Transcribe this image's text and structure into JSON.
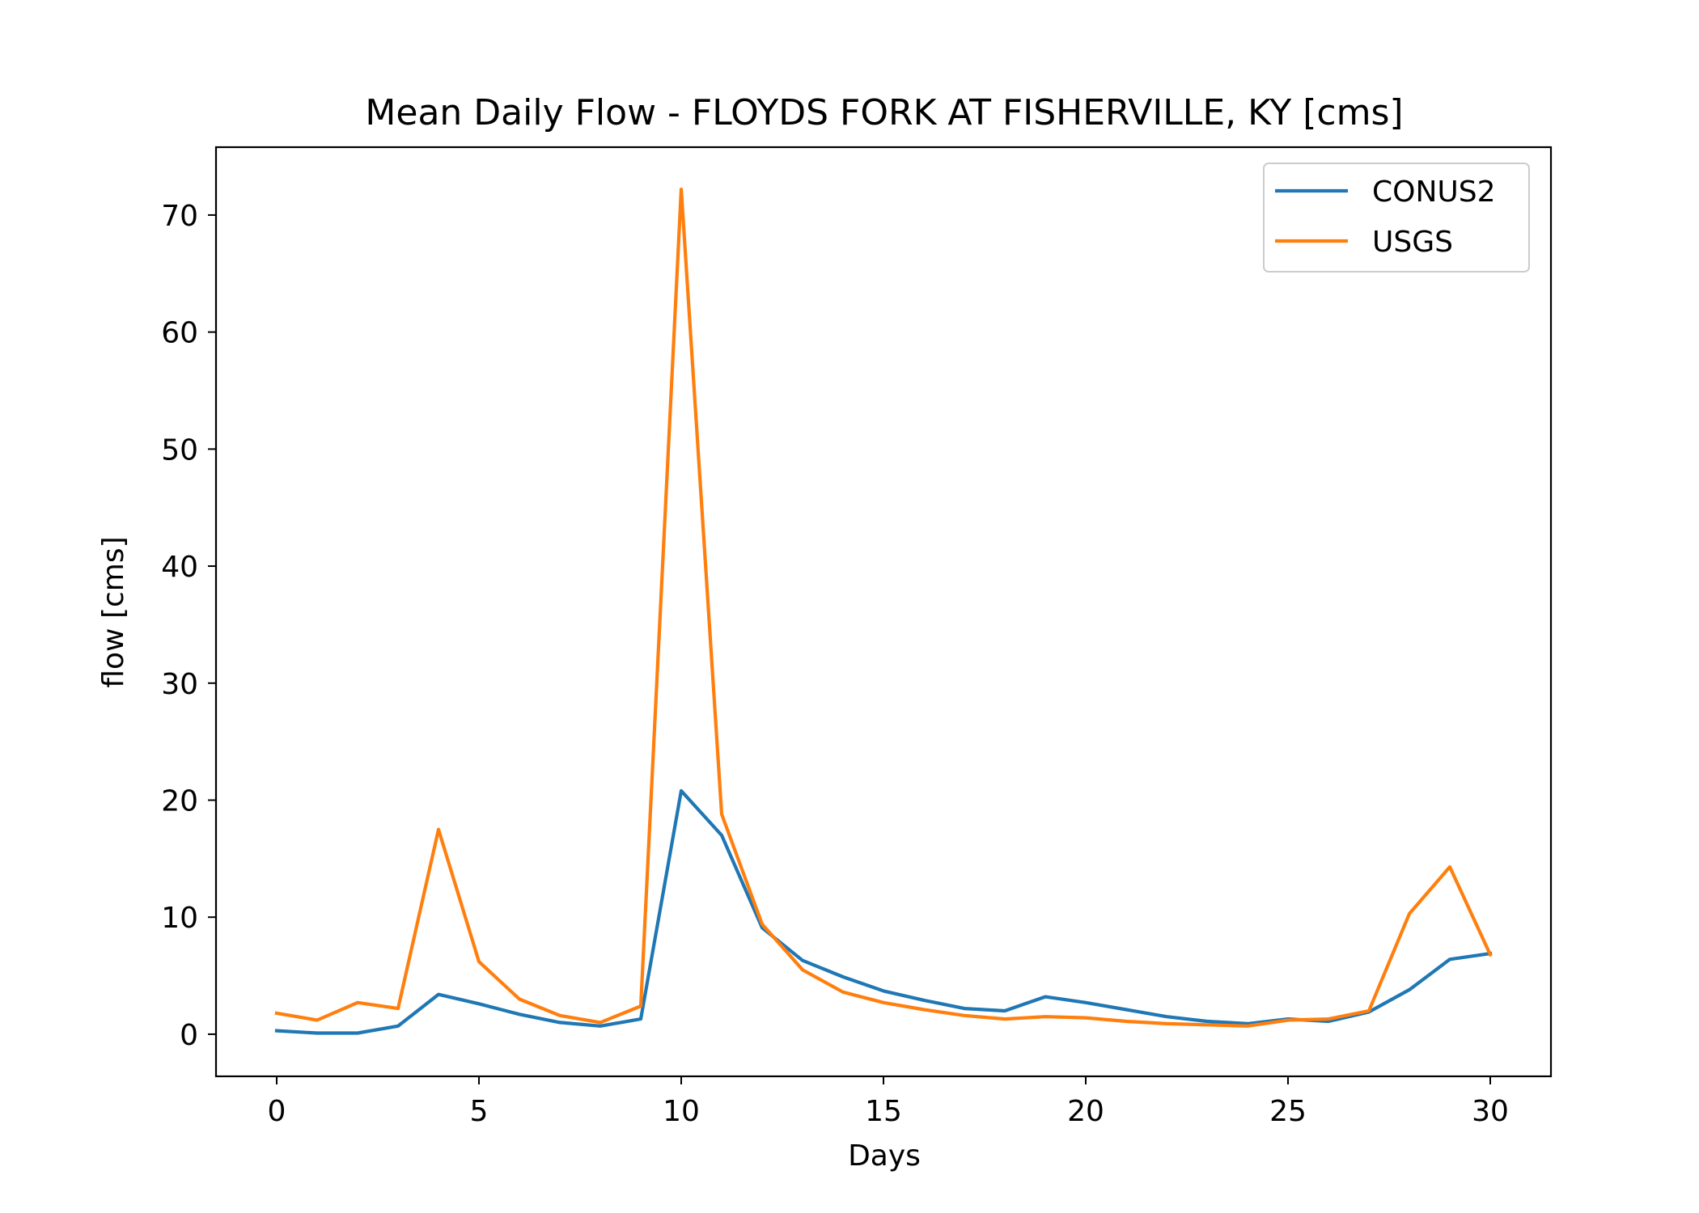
{
  "chart_data": {
    "type": "line",
    "title": "Mean Daily Flow - FLOYDS FORK AT FISHERVILLE, KY [cms]",
    "xlabel": "Days",
    "ylabel": "flow [cms]",
    "xlim": [
      -1.5,
      31.5
    ],
    "ylim": [
      -3.6,
      75.8
    ],
    "xticks": [
      0,
      5,
      10,
      15,
      20,
      25,
      30
    ],
    "yticks": [
      0,
      10,
      20,
      30,
      40,
      50,
      60,
      70
    ],
    "grid": false,
    "legend_position": "top-right",
    "x": [
      0,
      1,
      2,
      3,
      4,
      5,
      6,
      7,
      8,
      9,
      10,
      11,
      12,
      13,
      14,
      15,
      16,
      17,
      18,
      19,
      20,
      21,
      22,
      23,
      24,
      25,
      26,
      27,
      28,
      29,
      30
    ],
    "series": [
      {
        "name": "CONUS2",
        "color": "#1f77b4",
        "values": [
          0.3,
          0.1,
          0.1,
          0.7,
          3.4,
          2.6,
          1.7,
          1.0,
          0.7,
          1.3,
          20.8,
          17.0,
          9.1,
          6.3,
          4.9,
          3.7,
          2.9,
          2.2,
          2.0,
          3.2,
          2.7,
          2.1,
          1.5,
          1.1,
          0.9,
          1.3,
          1.1,
          1.9,
          3.8,
          6.4,
          6.9
        ]
      },
      {
        "name": "USGS",
        "color": "#ff7f0e",
        "values": [
          1.8,
          1.2,
          2.7,
          2.2,
          17.5,
          6.2,
          3.0,
          1.6,
          1.0,
          2.4,
          72.2,
          18.8,
          9.4,
          5.5,
          3.6,
          2.7,
          2.1,
          1.6,
          1.3,
          1.5,
          1.4,
          1.1,
          0.9,
          0.8,
          0.7,
          1.2,
          1.3,
          2.0,
          10.3,
          14.3,
          6.8
        ]
      }
    ]
  }
}
